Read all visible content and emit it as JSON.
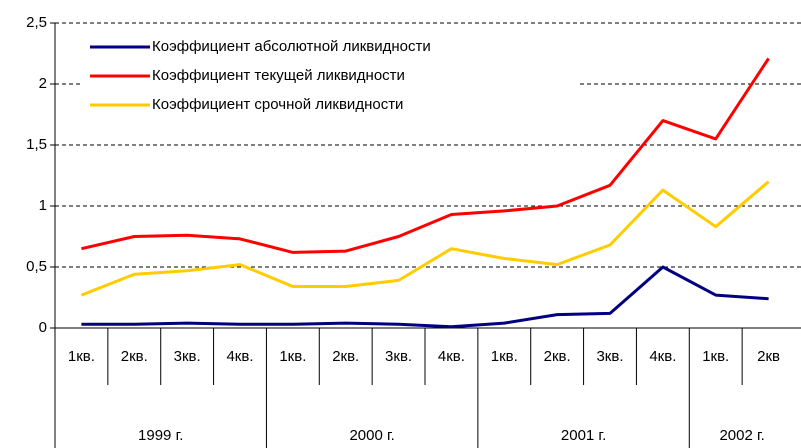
{
  "chart_data": {
    "type": "line",
    "category_groups": [
      {
        "name": "1999 г.",
        "categories": [
          "1кв.",
          "2кв.",
          "3кв.",
          "4кв."
        ]
      },
      {
        "name": "2000 г.",
        "categories": [
          "1кв.",
          "2кв.",
          "3кв.",
          "4кв."
        ]
      },
      {
        "name": "2001 г.",
        "categories": [
          "1кв.",
          "2кв.",
          "3кв.",
          "4кв."
        ]
      },
      {
        "name": "2002 г.",
        "categories": [
          "1кв.",
          "2кв"
        ]
      }
    ],
    "series": [
      {
        "name": "Коэффициент абсолютной ликвидности",
        "color": "#000080",
        "values": [
          0.03,
          0.03,
          0.04,
          0.03,
          0.03,
          0.04,
          0.03,
          0.01,
          0.04,
          0.11,
          0.12,
          0.5,
          0.27,
          0.24
        ]
      },
      {
        "name": "Коэффициент текущей ликвидности",
        "color": "#ff0000",
        "values": [
          0.65,
          0.75,
          0.76,
          0.73,
          0.62,
          0.63,
          0.75,
          0.93,
          0.96,
          1.0,
          1.17,
          1.7,
          1.55,
          2.21
        ]
      },
      {
        "name": "Коэффициент срочной ликвидности",
        "color": "#ffcc00",
        "values": [
          0.27,
          0.44,
          0.47,
          0.52,
          0.34,
          0.34,
          0.39,
          0.65,
          0.57,
          0.52,
          0.68,
          1.13,
          0.83,
          1.2
        ]
      }
    ],
    "ylim": [
      0,
      2.5
    ],
    "yticks": [
      0,
      {
        "value": 0.5,
        "label": "0,5"
      },
      1,
      {
        "value": 1.5,
        "label": "1,5"
      },
      2,
      {
        "value": 2.5,
        "label": "2,5"
      }
    ],
    "grid": true,
    "legend": "top-left"
  }
}
